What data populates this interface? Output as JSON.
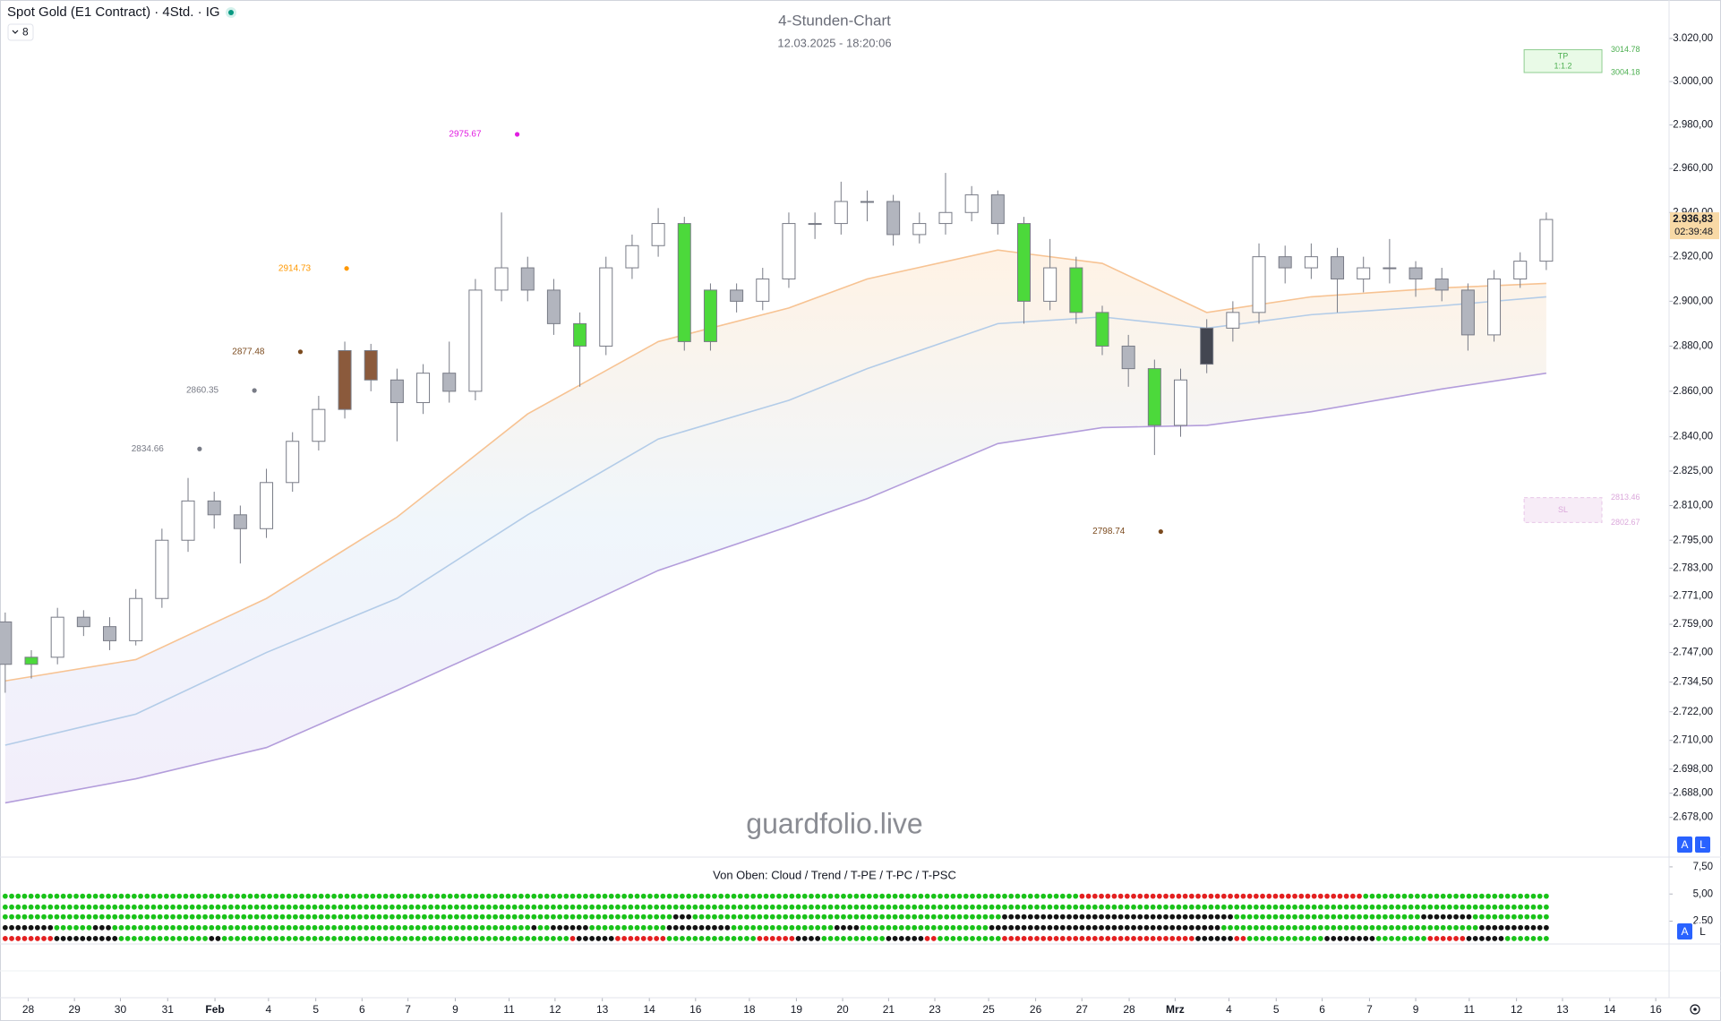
{
  "header": {
    "symbol": "Spot Gold (E1 Contract) · 4Std. · IG",
    "indicator_count": 8
  },
  "chart_data": {
    "type": "candlestick",
    "title": "4-Stunden-Chart",
    "subtitle": "12.03.2025 - 18:20:06",
    "watermark": "guardfolio.live",
    "log_scale": true,
    "grid": false,
    "xlim": [
      -0.2,
      63.7
    ],
    "xticks": [
      {
        "value": 0.88,
        "label": "28"
      },
      {
        "value": 2.65,
        "label": "29"
      },
      {
        "value": 4.41,
        "label": "30"
      },
      {
        "value": 6.22,
        "label": "31"
      },
      {
        "value": 8.03,
        "label": "Feb"
      },
      {
        "value": 10.08,
        "label": "4"
      },
      {
        "value": 11.89,
        "label": "5"
      },
      {
        "value": 13.66,
        "label": "6"
      },
      {
        "value": 15.42,
        "label": "7"
      },
      {
        "value": 17.23,
        "label": "9"
      },
      {
        "value": 19.29,
        "label": "11"
      },
      {
        "value": 21.05,
        "label": "12"
      },
      {
        "value": 22.86,
        "label": "13"
      },
      {
        "value": 24.66,
        "label": "14"
      },
      {
        "value": 26.43,
        "label": "16"
      },
      {
        "value": 28.49,
        "label": "18"
      },
      {
        "value": 30.29,
        "label": "19"
      },
      {
        "value": 32.06,
        "label": "20"
      },
      {
        "value": 33.82,
        "label": "21"
      },
      {
        "value": 35.59,
        "label": "23"
      },
      {
        "value": 37.65,
        "label": "25"
      },
      {
        "value": 39.45,
        "label": "26"
      },
      {
        "value": 41.22,
        "label": "27"
      },
      {
        "value": 43.03,
        "label": "28"
      },
      {
        "value": 44.79,
        "label": "Mrz"
      },
      {
        "value": 46.85,
        "label": "4"
      },
      {
        "value": 48.66,
        "label": "5"
      },
      {
        "value": 50.42,
        "label": "6"
      },
      {
        "value": 52.23,
        "label": "7"
      },
      {
        "value": 54.0,
        "label": "9"
      },
      {
        "value": 56.05,
        "label": "11"
      },
      {
        "value": 57.86,
        "label": "12"
      },
      {
        "value": 59.62,
        "label": "13"
      },
      {
        "value": 61.43,
        "label": "14"
      },
      {
        "value": 63.19,
        "label": "16"
      }
    ],
    "ylim": [
      2662,
      3038
    ],
    "yticks": [
      {
        "value": 3020,
        "label": "3.020,00"
      },
      {
        "value": 3000,
        "label": "3.000,00"
      },
      {
        "value": 2980,
        "label": "2.980,00"
      },
      {
        "value": 2960,
        "label": "2.960,00"
      },
      {
        "value": 2940,
        "label": "2.940,00"
      },
      {
        "value": 2920,
        "label": "2.920,00"
      },
      {
        "value": 2900,
        "label": "2.900,00"
      },
      {
        "value": 2880,
        "label": "2.880,00"
      },
      {
        "value": 2860,
        "label": "2.860,00"
      },
      {
        "value": 2840,
        "label": "2.840,00"
      },
      {
        "value": 2825,
        "label": "2.825,00"
      },
      {
        "value": 2810,
        "label": "2.810,00"
      },
      {
        "value": 2795,
        "label": "2.795,00"
      },
      {
        "value": 2783,
        "label": "2.783,00"
      },
      {
        "value": 2771,
        "label": "2.771,00"
      },
      {
        "value": 2759,
        "label": "2.759,00"
      },
      {
        "value": 2747,
        "label": "2.747,00"
      },
      {
        "value": 2734.5,
        "label": "2.734,50"
      },
      {
        "value": 2722,
        "label": "2.722,00"
      },
      {
        "value": 2710,
        "label": "2.710,00"
      },
      {
        "value": 2698,
        "label": "2.698,00"
      },
      {
        "value": 2688,
        "label": "2.688,00"
      },
      {
        "value": 2678,
        "label": "2.678,00"
      }
    ],
    "open": [
      2760,
      2742,
      2745,
      2762,
      2758,
      2752,
      2770,
      2795,
      2812,
      2806,
      2800,
      2820,
      2838,
      2852,
      2878,
      2865,
      2855,
      2868,
      2860,
      2905,
      2915,
      2905,
      2890,
      2880,
      2915,
      2925,
      2935,
      2882,
      2905,
      2900,
      2910,
      2935,
      2935,
      2945,
      2945,
      2930,
      2935,
      2940,
      2948,
      2935,
      2900,
      2915,
      2895,
      2880,
      2870,
      2845,
      2872,
      2888,
      2895,
      2920,
      2915,
      2920,
      2910,
      2915,
      2915,
      2910,
      2905,
      2885,
      2910,
      2918
    ],
    "high": [
      2764,
      2748,
      2766,
      2765,
      2762,
      2774,
      2800,
      2822,
      2816,
      2810,
      2826,
      2842,
      2858,
      2882,
      2881,
      2870,
      2872,
      2882,
      2910,
      2940,
      2920,
      2910,
      2895,
      2920,
      2930,
      2942,
      2938,
      2908,
      2908,
      2915,
      2940,
      2940,
      2954,
      2950,
      2948,
      2940,
      2958,
      2952,
      2950,
      2938,
      2928,
      2920,
      2898,
      2885,
      2874,
      2870,
      2892,
      2900,
      2926,
      2925,
      2926,
      2924,
      2920,
      2928,
      2918,
      2915,
      2908,
      2914,
      2922,
      2940
    ],
    "low": [
      2730,
      2736,
      2742,
      2754,
      2748,
      2750,
      2766,
      2790,
      2800,
      2785,
      2796,
      2816,
      2834,
      2848,
      2860,
      2838,
      2850,
      2855,
      2856,
      2900,
      2900,
      2885,
      2862,
      2876,
      2910,
      2920,
      2878,
      2878,
      2895,
      2896,
      2906,
      2928,
      2930,
      2936,
      2925,
      2926,
      2930,
      2936,
      2930,
      2890,
      2896,
      2890,
      2876,
      2862,
      2832,
      2840,
      2868,
      2882,
      2890,
      2908,
      2910,
      2895,
      2904,
      2908,
      2902,
      2900,
      2878,
      2882,
      2906,
      2914
    ],
    "close": [
      2742,
      2745,
      2762,
      2758,
      2752,
      2770,
      2795,
      2812,
      2806,
      2800,
      2820,
      2838,
      2852,
      2878,
      2865,
      2855,
      2868,
      2860,
      2905,
      2915,
      2905,
      2890,
      2880,
      2915,
      2925,
      2935,
      2882,
      2905,
      2900,
      2910,
      2935,
      2935,
      2945,
      2945,
      2930,
      2935,
      2940,
      2948,
      2935,
      2900,
      2915,
      2895,
      2880,
      2870,
      2845,
      2865,
      2888,
      2895,
      2920,
      2915,
      2920,
      2910,
      2915,
      2915,
      2910,
      2905,
      2885,
      2910,
      2918,
      2936.83
    ],
    "colors": [
      "#b2b5be",
      "#4cd93b",
      "#ffffff",
      "#b2b5be",
      "#b2b5be",
      "#ffffff",
      "#ffffff",
      "#ffffff",
      "#b2b5be",
      "#b2b5be",
      "#ffffff",
      "#ffffff",
      "#ffffff",
      "#8b5a3c",
      "#8b5a3c",
      "#b2b5be",
      "#ffffff",
      "#b2b5be",
      "#ffffff",
      "#ffffff",
      "#b2b5be",
      "#b2b5be",
      "#4cd93b",
      "#ffffff",
      "#ffffff",
      "#ffffff",
      "#4cd93b",
      "#4cd93b",
      "#b2b5be",
      "#ffffff",
      "#ffffff",
      "#ffffff",
      "#ffffff",
      "#ffffff",
      "#b2b5be",
      "#ffffff",
      "#ffffff",
      "#ffffff",
      "#b2b5be",
      "#4cd93b",
      "#ffffff",
      "#4cd93b",
      "#4cd93b",
      "#b2b5be",
      "#4cd93b",
      "#ffffff",
      "#434651",
      "#ffffff",
      "#ffffff",
      "#b2b5be",
      "#ffffff",
      "#b2b5be",
      "#ffffff",
      "#ffffff",
      "#b2b5be",
      "#b2b5be",
      "#b2b5be",
      "#ffffff",
      "#ffffff",
      "#ffffff"
    ],
    "wick_color": "#787b86",
    "overlays": [
      {
        "color": "#f7c393",
        "x": [
          0,
          5,
          10,
          15,
          20,
          25,
          30,
          33,
          38,
          42,
          46,
          50,
          55,
          59
        ],
        "values": [
          2735,
          2744,
          2770,
          2805,
          2850,
          2882,
          2897,
          2910,
          2923,
          2917,
          2895,
          2902,
          2906,
          2908
        ]
      },
      {
        "color": "#b3cce8",
        "x": [
          0,
          5,
          10,
          15,
          20,
          25,
          30,
          33,
          38,
          42,
          46,
          50,
          55,
          59
        ],
        "values": [
          2708,
          2721,
          2747,
          2770,
          2806,
          2839,
          2856,
          2870,
          2890,
          2893,
          2888,
          2894,
          2898,
          2902
        ]
      },
      {
        "color": "#b39ddb",
        "x": [
          0,
          5,
          10,
          15,
          20,
          25,
          30,
          33,
          38,
          42,
          46,
          50,
          55,
          59
        ],
        "values": [
          2684,
          2694,
          2707,
          2731,
          2756,
          2782,
          2801,
          2813,
          2837,
          2844,
          2845,
          2851,
          2861,
          2868
        ]
      }
    ],
    "annotations": [
      {
        "value": 2975.67,
        "x": 19.6,
        "color": "#e11de1"
      },
      {
        "value": 2914.73,
        "x": 13.07,
        "color": "#ff9800"
      },
      {
        "value": 2877.48,
        "x": 11.3,
        "color": "#7b4a1e"
      },
      {
        "value": 2860.35,
        "x": 9.54,
        "color": "#787b86"
      },
      {
        "value": 2834.66,
        "x": 7.44,
        "color": "#787b86"
      },
      {
        "value": 2798.74,
        "x": 44.24,
        "color": "#7b4a1e"
      }
    ],
    "tp": {
      "label": "TP",
      "ratio": "1:1.2",
      "top": 3014.78,
      "bottom": 3004.18,
      "x": [
        58.15,
        61.13
      ],
      "color": "#4caf50"
    },
    "sl": {
      "label": "SL",
      "top": 2813.46,
      "bottom": 2802.67,
      "x": [
        58.15,
        61.13
      ],
      "color": "#dba8db"
    },
    "last_price": {
      "value": 2936.83,
      "label": "2.936,83",
      "countdown": "02:39:48",
      "color": "#f8d9a6"
    },
    "panel": {
      "title": "Von Oben: Cloud / Trend / T-PE / T-PC / T-PSC",
      "ylim": [
        0.4,
        8.4
      ],
      "yticks": [
        {
          "value": 7.5,
          "label": "7,50"
        },
        {
          "value": 5,
          "label": "5,00"
        },
        {
          "value": 2.5,
          "label": "2,50"
        }
      ],
      "dot_colors": {
        "g": "#19c219",
        "k": "#131313",
        "r": "#e32020"
      },
      "rows": [
        {
          "level": 4.8,
          "runs": [
            [
              "g",
              167
            ],
            [
              "r",
              44
            ],
            [
              "g",
              29
            ]
          ]
        },
        {
          "level": 3.8,
          "runs": [
            [
              "g",
              240
            ]
          ]
        },
        {
          "level": 2.9,
          "runs": [
            [
              "g",
              104
            ],
            [
              "k",
              3
            ],
            [
              "g",
              48
            ],
            [
              "k",
              36
            ],
            [
              "g",
              29
            ],
            [
              "k",
              8
            ],
            [
              "g",
              12
            ]
          ]
        },
        {
          "level": 1.9,
          "runs": [
            [
              "k",
              8
            ],
            [
              "g",
              6
            ],
            [
              "k",
              3
            ],
            [
              "g",
              65
            ],
            [
              "k",
              1
            ],
            [
              "g",
              2
            ],
            [
              "k",
              6
            ],
            [
              "g",
              12
            ],
            [
              "k",
              10
            ],
            [
              "g",
              16
            ],
            [
              "k",
              4
            ],
            [
              "g",
              20
            ],
            [
              "k",
              36
            ],
            [
              "g",
              40
            ],
            [
              "k",
              11
            ]
          ]
        },
        {
          "level": 0.9,
          "runs": [
            [
              "r",
              8
            ],
            [
              "k",
              10
            ],
            [
              "g",
              14
            ],
            [
              "k",
              2
            ],
            [
              "g",
              54
            ],
            [
              "r",
              1
            ],
            [
              "k",
              6
            ],
            [
              "r",
              8
            ],
            [
              "g",
              14
            ],
            [
              "r",
              6
            ],
            [
              "k",
              4
            ],
            [
              "g",
              10
            ],
            [
              "k",
              6
            ],
            [
              "r",
              2
            ],
            [
              "g",
              10
            ],
            [
              "r",
              30
            ],
            [
              "k",
              6
            ],
            [
              "r",
              2
            ],
            [
              "g",
              12
            ],
            [
              "k",
              8
            ],
            [
              "g",
              8
            ],
            [
              "r",
              6
            ],
            [
              "k",
              6
            ],
            [
              "g",
              7
            ]
          ]
        }
      ]
    },
    "buttons": [
      "A",
      "L"
    ]
  }
}
